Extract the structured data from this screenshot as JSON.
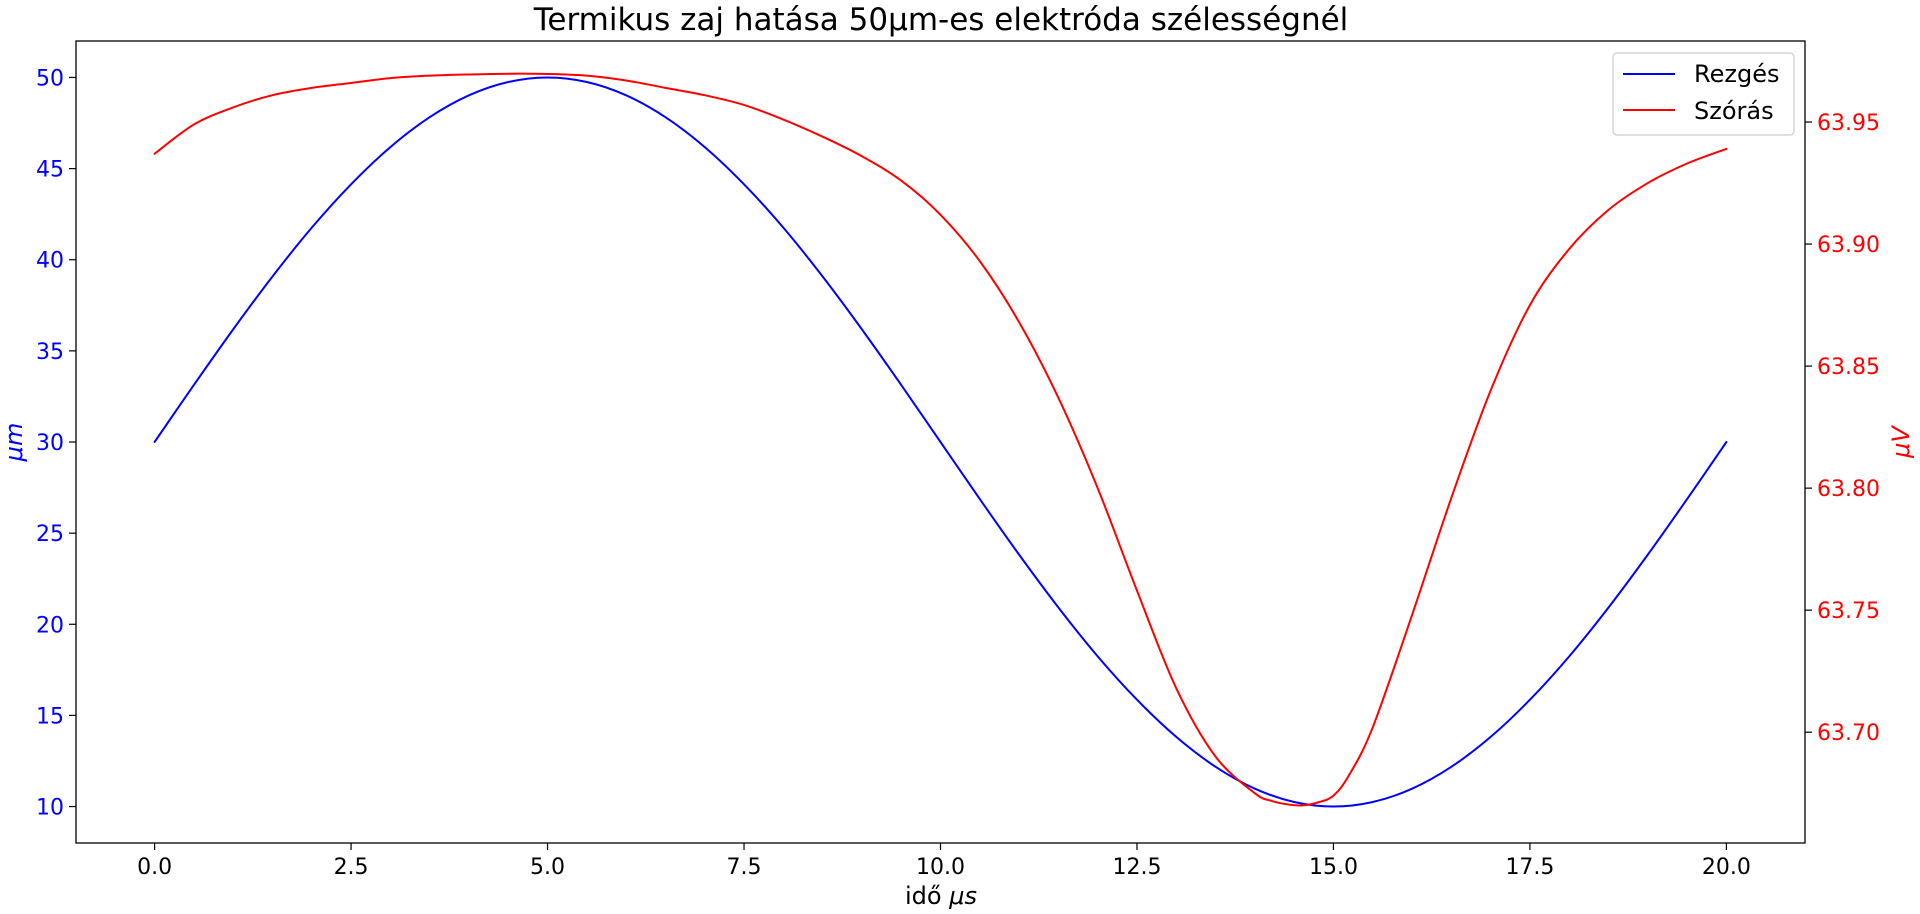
{
  "chart_data": {
    "type": "line",
    "title": "Termikus zaj hatása 50μm-es elektróda szélességnél",
    "xlabel_text": "idő ",
    "xlabel_unit": "μs",
    "ylabel_left": "μm",
    "ylabel_right": "μV",
    "xlim": [
      -1.0,
      21.0
    ],
    "ylim_left": [
      8.0,
      52.0
    ],
    "ylim_right": [
      63.6546,
      63.9832
    ],
    "xticks": [
      0.0,
      2.5,
      5.0,
      7.5,
      10.0,
      12.5,
      15.0,
      17.5,
      20.0
    ],
    "xtick_labels": [
      "0.0",
      "2.5",
      "5.0",
      "7.5",
      "10.0",
      "12.5",
      "15.0",
      "17.5",
      "20.0"
    ],
    "yticks_left": [
      10,
      15,
      20,
      25,
      30,
      35,
      40,
      45,
      50
    ],
    "ytick_labels_left": [
      "10",
      "15",
      "20",
      "25",
      "30",
      "35",
      "40",
      "45",
      "50"
    ],
    "yticks_right": [
      63.7,
      63.75,
      63.8,
      63.85,
      63.9,
      63.95
    ],
    "ytick_labels_right": [
      "63.70",
      "63.75",
      "63.80",
      "63.85",
      "63.90",
      "63.95"
    ],
    "legend_position": "top-right",
    "grid": false,
    "series": [
      {
        "name": "Rezgés",
        "axis": "left",
        "color": "#0000ff",
        "x": [
          0.0,
          0.5,
          1.0,
          1.5,
          2.0,
          2.5,
          3.0,
          3.5,
          4.0,
          4.5,
          5.0,
          5.5,
          6.0,
          6.5,
          7.0,
          7.5,
          8.0,
          8.5,
          9.0,
          9.5,
          10.0,
          10.5,
          11.0,
          11.5,
          12.0,
          12.5,
          13.0,
          13.5,
          14.0,
          14.5,
          15.0,
          15.5,
          16.0,
          16.5,
          17.0,
          17.5,
          18.0,
          18.5,
          19.0,
          19.5,
          20.0
        ],
        "y": [
          30.0,
          33.13,
          36.18,
          39.08,
          41.76,
          44.14,
          46.18,
          47.82,
          49.02,
          49.75,
          50.0,
          49.75,
          49.02,
          47.82,
          46.18,
          44.14,
          41.76,
          39.08,
          36.18,
          33.13,
          30.0,
          26.87,
          23.82,
          20.92,
          18.24,
          15.86,
          13.82,
          12.18,
          10.98,
          10.25,
          10.0,
          10.25,
          10.98,
          12.18,
          13.82,
          15.86,
          18.24,
          20.92,
          23.82,
          26.87,
          30.0
        ]
      },
      {
        "name": "Szórás",
        "axis": "right",
        "color": "#ff0000",
        "x": [
          0.0,
          0.5,
          1.0,
          1.5,
          2.0,
          2.5,
          3.0,
          3.5,
          4.0,
          4.5,
          5.0,
          5.5,
          6.0,
          6.5,
          7.0,
          7.5,
          8.0,
          8.5,
          9.0,
          9.5,
          10.0,
          10.5,
          11.0,
          11.5,
          12.0,
          12.5,
          13.0,
          13.5,
          14.0,
          14.2,
          14.4,
          14.6,
          14.8,
          15.0,
          15.2,
          15.5,
          16.0,
          16.5,
          17.0,
          17.5,
          18.0,
          18.5,
          19.0,
          19.5,
          20.0
        ],
        "y": [
          63.937,
          63.949,
          63.956,
          63.961,
          63.964,
          63.966,
          63.968,
          63.969,
          63.9695,
          63.9698,
          63.9697,
          63.969,
          63.967,
          63.964,
          63.961,
          63.957,
          63.951,
          63.944,
          63.936,
          63.926,
          63.912,
          63.893,
          63.868,
          63.837,
          63.8,
          63.758,
          63.718,
          63.69,
          63.675,
          63.672,
          63.6705,
          63.67,
          63.6712,
          63.674,
          63.6825,
          63.702,
          63.748,
          63.796,
          63.84,
          63.875,
          63.898,
          63.914,
          63.925,
          63.933,
          63.939
        ]
      }
    ]
  }
}
